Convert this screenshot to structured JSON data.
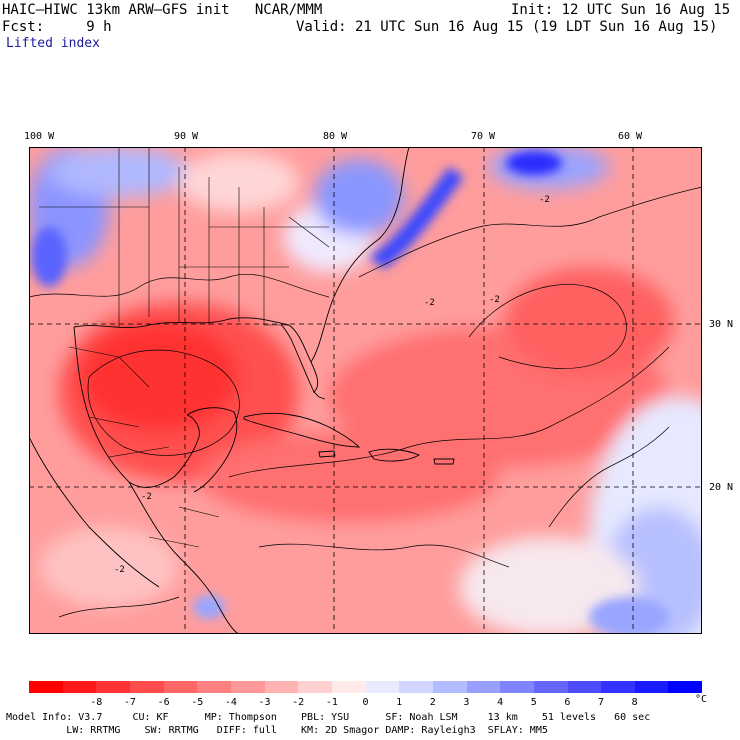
{
  "header": {
    "title_left": "HAIC–HIWC 13km ARW–GFS init   NCAR/MMM",
    "init": "Init: 12 UTC Sun 16 Aug 15",
    "fcst_label": "Fcst:     9 h",
    "valid": "Valid: 21 UTC Sun 16 Aug 15 (19 LDT Sun 16 Aug 15)",
    "field_name": "Lifted index"
  },
  "map": {
    "lon_labels": [
      "100 W",
      "90 W",
      "80 W",
      "70 W",
      "60 W"
    ],
    "lat_labels": [
      "30 N",
      "20 N"
    ],
    "contour_label": "-2",
    "colors": {
      "strong_red": "#ff1a1a",
      "mid_red": "#ff5a5a",
      "light_red": "#ffb3b3",
      "white": "#ffffff",
      "light_blue": "#c8d2ff",
      "blue": "#3030ff"
    }
  },
  "colorbar": {
    "tick_labels": [
      "-8",
      "-7",
      "-6",
      "-5",
      "-4",
      "-3",
      "-2",
      "-1",
      "0",
      "1",
      "2",
      "3",
      "4",
      "5",
      "6",
      "7",
      "8"
    ],
    "unit": "°C",
    "colors": [
      "#ff0000",
      "#ff1a1a",
      "#ff3333",
      "#ff4d4d",
      "#ff6666",
      "#ff8080",
      "#ff9999",
      "#ffb3b3",
      "#ffd0d0",
      "#ffeaea",
      "#eaeaff",
      "#d0d6ff",
      "#b3bcff",
      "#999fff",
      "#8085ff",
      "#6666ff",
      "#4d4dff",
      "#3333ff",
      "#1a1aff",
      "#0000ff"
    ]
  },
  "footer": {
    "line1": " Model Info: V3.7     CU: KF      MP: Thompson    PBL: YSU      SF: Noah LSM     13 km    51 levels   60 sec",
    "line2": "           LW: RRTMG    SW: RRTMG   DIFF: full    KM: 2D Smagor DAMP: Rayleigh3  SFLAY: MM5"
  }
}
